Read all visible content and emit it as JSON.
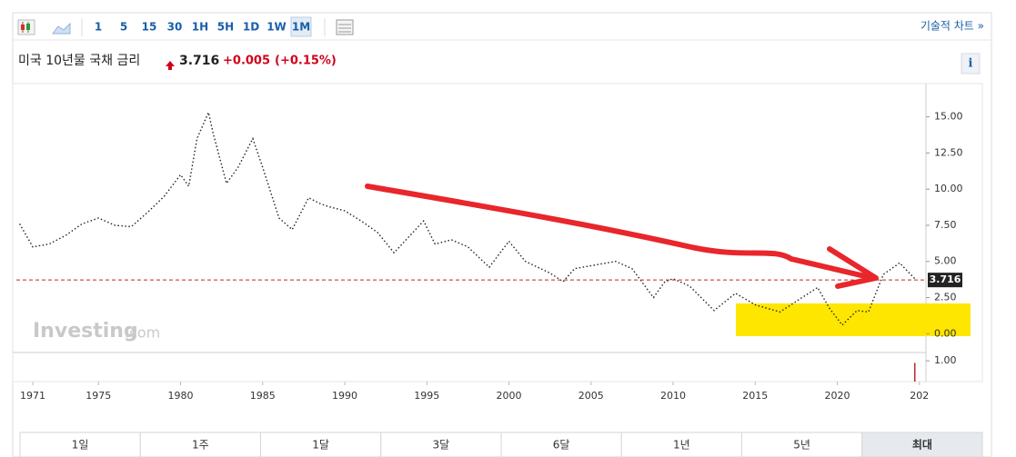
{
  "toolbar": {
    "intervals": [
      "1",
      "5",
      "15",
      "30",
      "1H",
      "5H",
      "1D",
      "1W",
      "1M"
    ],
    "active_index": 8,
    "link": "기술적 차트 »"
  },
  "header": {
    "title": "미국 10년물 국채 금리",
    "price": "3.716",
    "change": "+0.005",
    "change_pct": "(+0.15%)"
  },
  "chart": {
    "type": "line",
    "color": "#222",
    "x": [
      1970.2,
      1971,
      1972,
      1973,
      1974,
      1975,
      1976,
      1977,
      1978,
      1979,
      1980,
      1980.5,
      1981,
      1981.7,
      1982,
      1982.8,
      1983.5,
      1984.4,
      1985,
      1986,
      1986.8,
      1987.8,
      1988.5,
      1989,
      1990,
      1991,
      1992,
      1993,
      1994.8,
      1995.5,
      1996.5,
      1997.5,
      1998.8,
      2000,
      2001,
      2002.5,
      2003.3,
      2004,
      2006.5,
      2007.5,
      2008.8,
      2009.5,
      2010,
      2011,
      2012.5,
      2013.8,
      2015,
      2016.5,
      2018.8,
      2019.5,
      2020.3,
      2021.2,
      2021.9,
      2022.8,
      2023.8,
      2024.3,
      2024.8
    ],
    "values": [
      7.6,
      6.0,
      6.2,
      6.8,
      7.6,
      8.0,
      7.5,
      7.4,
      8.4,
      9.5,
      11.0,
      10.2,
      13.5,
      15.3,
      13.8,
      10.4,
      11.5,
      13.5,
      11.5,
      8.0,
      7.2,
      9.4,
      9.0,
      8.8,
      8.5,
      7.8,
      7.0,
      5.6,
      7.8,
      6.2,
      6.5,
      6.0,
      4.6,
      6.4,
      5.0,
      4.2,
      3.6,
      4.5,
      5.0,
      4.5,
      2.5,
      3.6,
      3.8,
      3.3,
      1.6,
      2.8,
      2.0,
      1.5,
      3.2,
      1.8,
      0.6,
      1.6,
      1.5,
      4.1,
      4.9,
      4.3,
      3.716
    ],
    "current_value": 3.716,
    "xlim": [
      1970,
      2025.4
    ],
    "ylim": [
      -1.3,
      17.3
    ],
    "xticks": [
      1971,
      1975,
      1980,
      1985,
      1990,
      1995,
      2000,
      2005,
      2010,
      2015,
      2020,
      {
        "value": 2025,
        "label": "202"
      }
    ],
    "yticks": [
      {
        "value": 15,
        "label": "15.00"
      },
      {
        "value": 12.5,
        "label": "12.50"
      },
      {
        "value": 10,
        "label": "10.00"
      },
      {
        "value": 7.5,
        "label": "7.50"
      },
      {
        "value": 5,
        "label": "5.00"
      },
      {
        "value": 2.5,
        "label": "2.50"
      },
      {
        "value": 0,
        "label": "0.00"
      }
    ],
    "volume": {
      "ylim": [
        0,
        1.4
      ],
      "yticks": [
        {
          "value": 1,
          "label": "1.00"
        }
      ],
      "last_value": 0.9
    },
    "watermark": {
      "brand": "Investing",
      "suffix": ".com"
    }
  },
  "ranges": {
    "labels": [
      "1일",
      "1주",
      "1달",
      "3달",
      "6달",
      "1년",
      "5년",
      "최대"
    ],
    "active_index": 7
  }
}
